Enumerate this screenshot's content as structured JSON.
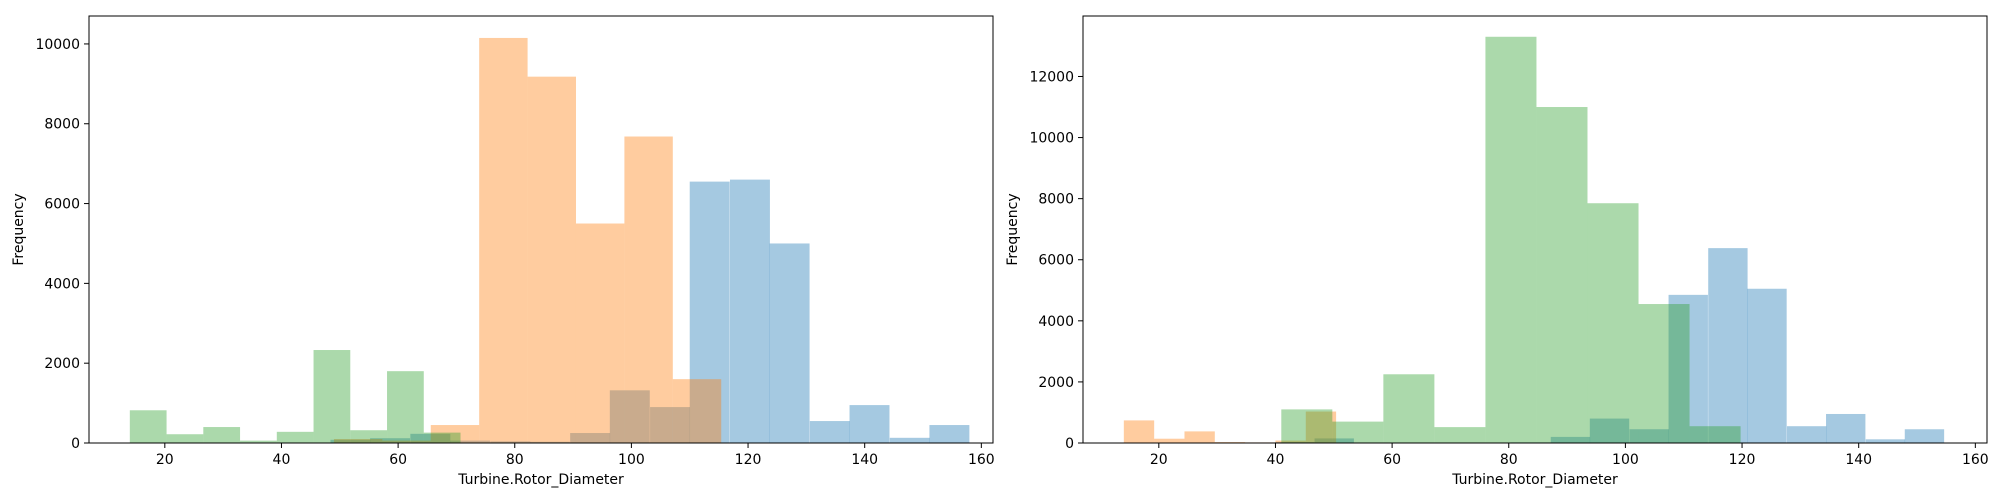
{
  "colors": {
    "blue": "#1f77b4",
    "orange": "#ff7f0e",
    "green": "#2ca02c"
  },
  "chart_data": [
    {
      "type": "bar",
      "subtype": "overlaid histograms",
      "xlabel": "Turbine.Rotor_Diameter",
      "ylabel": "Frequency",
      "xlim": [
        7,
        162
      ],
      "ylim": [
        0,
        10700
      ],
      "xticks": [
        20,
        40,
        60,
        80,
        100,
        120,
        140,
        160
      ],
      "yticks": [
        0,
        2000,
        4000,
        6000,
        8000,
        10000
      ],
      "grid": false,
      "alpha": 0.4,
      "series": [
        {
          "color": "#1f77b4",
          "bin_width": 6.85,
          "bins": [
            [
              48.4,
              80
            ],
            [
              55.2,
              120
            ],
            [
              62.1,
              230
            ],
            [
              68.9,
              60
            ],
            [
              75.8,
              40
            ],
            [
              82.6,
              30
            ],
            [
              89.5,
              250
            ],
            [
              96.3,
              1320
            ],
            [
              103.2,
              900
            ],
            [
              110.0,
              6550
            ],
            [
              116.9,
              6600
            ],
            [
              123.7,
              5000
            ],
            [
              130.6,
              550
            ],
            [
              137.4,
              950
            ],
            [
              144.3,
              130
            ],
            [
              151.1,
              450
            ]
          ]
        },
        {
          "color": "#ff7f0e",
          "bin_width": 8.3,
          "bins": [
            [
              49.0,
              100
            ],
            [
              57.3,
              60
            ],
            [
              65.6,
              450
            ],
            [
              73.9,
              10150
            ],
            [
              82.2,
              9180
            ],
            [
              90.5,
              5500
            ],
            [
              98.8,
              7680
            ],
            [
              107.1,
              1600
            ]
          ]
        },
        {
          "color": "#2ca02c",
          "bin_width": 6.3,
          "bins": [
            [
              14.0,
              820
            ],
            [
              20.3,
              220
            ],
            [
              26.6,
              400
            ],
            [
              32.9,
              60
            ],
            [
              39.2,
              280
            ],
            [
              45.5,
              2330
            ],
            [
              51.8,
              320
            ],
            [
              58.1,
              1800
            ],
            [
              64.4,
              260
            ]
          ]
        }
      ]
    },
    {
      "type": "bar",
      "subtype": "overlaid histograms",
      "xlabel": "Turbine.Rotor_Diameter",
      "ylabel": "Frequency",
      "xlim": [
        7,
        162
      ],
      "ylim": [
        0,
        13980
      ],
      "xticks": [
        20,
        40,
        60,
        80,
        100,
        120,
        140,
        160
      ],
      "yticks": [
        0,
        2000,
        4000,
        6000,
        8000,
        10000,
        12000
      ],
      "grid": false,
      "alpha": 0.4,
      "series": [
        {
          "color": "#1f77b4",
          "bin_width": 6.75,
          "bins": [
            [
              39.9,
              30
            ],
            [
              46.7,
              150
            ],
            [
              80.4,
              20
            ],
            [
              87.2,
              200
            ],
            [
              93.9,
              800
            ],
            [
              100.7,
              450
            ],
            [
              107.4,
              4850
            ],
            [
              114.2,
              6380
            ],
            [
              120.9,
              5050
            ],
            [
              127.7,
              550
            ],
            [
              134.4,
              950
            ],
            [
              141.2,
              120
            ],
            [
              147.9,
              450
            ]
          ]
        },
        {
          "color": "#ff7f0e",
          "bin_width": 5.2,
          "bins": [
            [
              14.0,
              740
            ],
            [
              19.2,
              140
            ],
            [
              24.4,
              380
            ],
            [
              29.6,
              30
            ],
            [
              34.8,
              20
            ],
            [
              40.0,
              80
            ],
            [
              45.2,
              1030
            ]
          ]
        },
        {
          "color": "#2ca02c",
          "bin_width": 8.75,
          "bins": [
            [
              41.0,
              1100
            ],
            [
              49.75,
              700
            ],
            [
              58.5,
              2250
            ],
            [
              67.25,
              520
            ],
            [
              76.0,
              13300
            ],
            [
              84.75,
              11000
            ],
            [
              93.5,
              7850
            ],
            [
              102.25,
              4550
            ],
            [
              111.0,
              550
            ]
          ]
        }
      ]
    }
  ]
}
